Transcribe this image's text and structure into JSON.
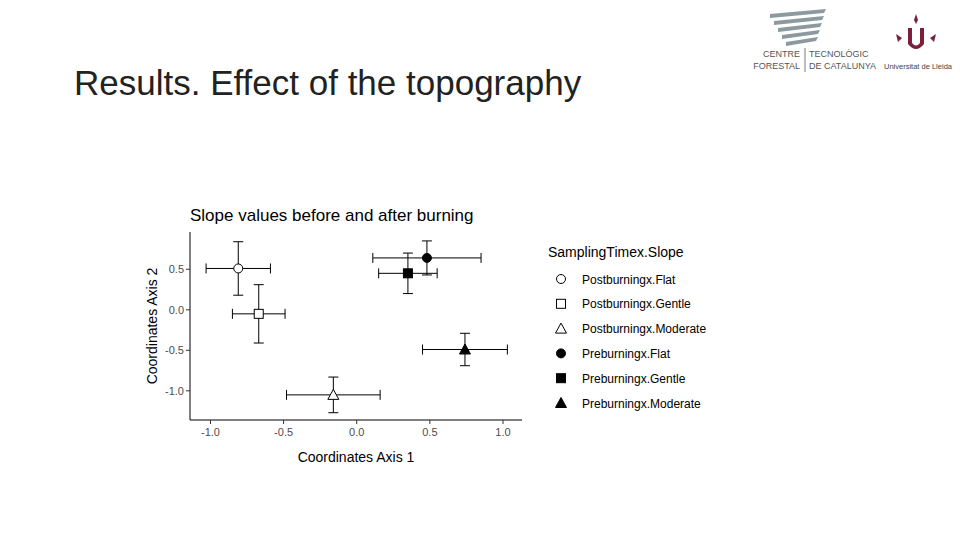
{
  "slide": {
    "title": "Results. Effect of the topography"
  },
  "logos": {
    "ctfc_top": [
      "CENTRE",
      "TECNOLÒGIC"
    ],
    "ctfc_bottom": [
      "FORESTAL",
      "DE CATALUNYA"
    ],
    "udl": "Universitat de Lleida"
  },
  "chart_data": {
    "type": "scatter",
    "title": "Slope values before and after burning",
    "x_label": "Coordinates Axis 1",
    "y_label": "Coordinates Axis 2",
    "legend_title": "SamplingTimex.Slope",
    "legend": "right",
    "grid": false,
    "xlim": [
      -1.14,
      1.13
    ],
    "ylim": [
      -1.36,
      0.96
    ],
    "xticks": [
      {
        "value": -1,
        "label": "-1.0"
      },
      -0.5,
      {
        "value": 0,
        "label": "0.0"
      },
      0.5,
      {
        "value": 1,
        "label": "1.0"
      }
    ],
    "yticks": [
      0.5,
      {
        "value": 0,
        "label": "0.0"
      },
      -0.5,
      {
        "value": -1,
        "label": "-1.0"
      }
    ],
    "series": [
      {
        "name": "Postburningx.Flat",
        "color": "#000000",
        "marker": "open-circle",
        "x": [
          -0.81
        ],
        "y": [
          0.51
        ],
        "x_error": [
          0.22
        ],
        "y_error": [
          0.33
        ]
      },
      {
        "name": "Postburningx.Gentle",
        "color": "#000000",
        "marker": "open-square",
        "x": [
          -0.67
        ],
        "y": [
          -0.05
        ],
        "x_error": [
          0.18
        ],
        "y_error": [
          0.36
        ]
      },
      {
        "name": "Postburningx.Moderate",
        "color": "#000000",
        "marker": "open-triangle",
        "x": [
          -0.16
        ],
        "y": [
          -1.05
        ],
        "x_error": [
          0.32
        ],
        "y_error": [
          0.22
        ]
      },
      {
        "name": "Preburningx.Flat",
        "color": "#000000",
        "marker": "circle",
        "x": [
          0.48
        ],
        "y": [
          0.64
        ],
        "x_error": [
          0.37
        ],
        "y_error": [
          0.21
        ]
      },
      {
        "name": "Preburningx.Gentle",
        "color": "#000000",
        "marker": "square",
        "x": [
          0.35
        ],
        "y": [
          0.45
        ],
        "x_error": [
          0.2
        ],
        "y_error": [
          0.25
        ]
      },
      {
        "name": "Preburningx.Moderate",
        "color": "#000000",
        "marker": "triangle",
        "x": [
          0.74
        ],
        "y": [
          -0.49
        ],
        "x_error": [
          0.29
        ],
        "y_error": [
          0.2
        ]
      }
    ]
  }
}
